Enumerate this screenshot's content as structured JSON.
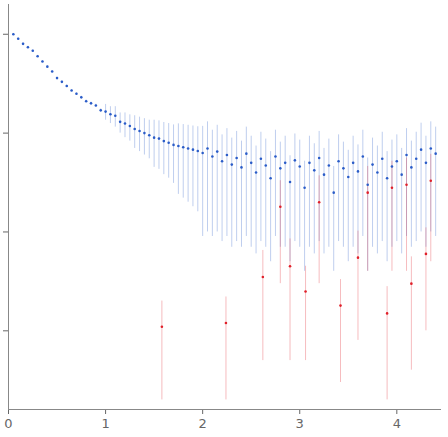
{
  "chart_data": {
    "type": "scatter",
    "log": "y",
    "tick_labels": "x",
    "marker": "circle",
    "xlim": [
      0,
      4.45
    ],
    "xticks": [
      0,
      1,
      2,
      3,
      4
    ],
    "ylim": [
      0.00016,
      2
    ],
    "yticks": [
      0.001,
      0.01,
      0.1,
      1
    ],
    "series": [
      {
        "color": "#2a5cc8",
        "x": [
          0.05,
          0.1,
          0.15,
          0.2,
          0.25,
          0.3,
          0.35,
          0.4,
          0.45,
          0.5,
          0.55,
          0.6,
          0.65,
          0.7,
          0.75,
          0.8,
          0.85,
          0.9,
          0.95,
          1.0,
          1.05,
          1.1,
          1.15,
          1.2,
          1.25,
          1.3,
          1.35,
          1.4,
          1.45,
          1.5,
          1.55,
          1.6,
          1.65,
          1.7,
          1.75,
          1.8,
          1.85,
          1.9,
          1.95,
          2.0,
          2.05,
          2.1,
          2.15,
          2.2,
          2.25,
          2.3,
          2.35,
          2.4,
          2.45,
          2.5,
          2.55,
          2.6,
          2.65,
          2.7,
          2.75,
          2.8,
          2.85,
          2.9,
          2.95,
          3.0,
          3.05,
          3.1,
          3.15,
          3.2,
          3.25,
          3.3,
          3.35,
          3.4,
          3.45,
          3.5,
          3.55,
          3.6,
          3.65,
          3.7,
          3.75,
          3.8,
          3.85,
          3.9,
          3.95,
          4.0,
          4.05,
          4.1,
          4.15,
          4.2,
          4.25,
          4.3,
          4.35,
          4.4
        ],
        "values": [
          1.0,
          0.9,
          0.8,
          0.74,
          0.68,
          0.6,
          0.53,
          0.47,
          0.42,
          0.36,
          0.33,
          0.3,
          0.27,
          0.25,
          0.23,
          0.21,
          0.2,
          0.19,
          0.17,
          0.165,
          0.155,
          0.15,
          0.13,
          0.125,
          0.118,
          0.11,
          0.105,
          0.1,
          0.095,
          0.09,
          0.088,
          0.083,
          0.08,
          0.076,
          0.074,
          0.072,
          0.07,
          0.068,
          0.066,
          0.063,
          0.07,
          0.058,
          0.065,
          0.052,
          0.06,
          0.048,
          0.056,
          0.045,
          0.062,
          0.05,
          0.04,
          0.055,
          0.047,
          0.035,
          0.058,
          0.044,
          0.05,
          0.032,
          0.053,
          0.046,
          0.028,
          0.05,
          0.042,
          0.056,
          0.038,
          0.047,
          0.025,
          0.052,
          0.044,
          0.036,
          0.05,
          0.041,
          0.058,
          0.03,
          0.048,
          0.04,
          0.055,
          0.035,
          0.046,
          0.052,
          0.038,
          0.06,
          0.045,
          0.055,
          0.068,
          0.05,
          0.07,
          0.062
        ],
        "error": [
          0.02,
          0.02,
          0.02,
          0.015,
          0.015,
          0.012,
          0.011,
          0.01,
          0.009,
          0.008,
          0.007,
          0.007,
          0.006,
          0.006,
          0.006,
          0.006,
          0.006,
          0.006,
          0.006,
          0.03,
          0.03,
          0.035,
          0.03,
          0.035,
          0.035,
          0.04,
          0.04,
          0.04,
          0.04,
          0.045,
          0.045,
          0.045,
          0.045,
          0.045,
          0.05,
          0.05,
          0.05,
          0.05,
          0.05,
          0.054,
          0.06,
          0.049,
          0.055,
          0.044,
          0.051,
          0.041,
          0.048,
          0.038,
          0.053,
          0.043,
          0.034,
          0.047,
          0.04,
          0.03,
          0.049,
          0.037,
          0.043,
          0.027,
          0.045,
          0.039,
          0.024,
          0.043,
          0.036,
          0.048,
          0.032,
          0.04,
          0.021,
          0.044,
          0.037,
          0.031,
          0.043,
          0.035,
          0.049,
          0.026,
          0.041,
          0.034,
          0.047,
          0.03,
          0.039,
          0.044,
          0.032,
          0.051,
          0.038,
          0.047,
          0.058,
          0.043,
          0.06,
          0.053
        ]
      },
      {
        "color": "#e0202a",
        "x": [
          1.58,
          2.24,
          2.62,
          2.8,
          2.9,
          3.06,
          3.2,
          3.42,
          3.6,
          3.7,
          3.9,
          3.95,
          4.1,
          4.15,
          4.3,
          4.35
        ],
        "values": [
          0.0011,
          0.0012,
          0.0035,
          0.018,
          0.0045,
          0.0025,
          0.02,
          0.0018,
          0.0055,
          0.025,
          0.0015,
          0.028,
          0.03,
          0.003,
          0.006,
          0.033
        ],
        "error": [
          0.0009,
          0.001,
          0.003,
          0.015,
          0.004,
          0.002,
          0.017,
          0.0015,
          0.0047,
          0.021,
          0.0013,
          0.024,
          0.026,
          0.0026,
          0.005,
          0.028
        ]
      }
    ]
  }
}
